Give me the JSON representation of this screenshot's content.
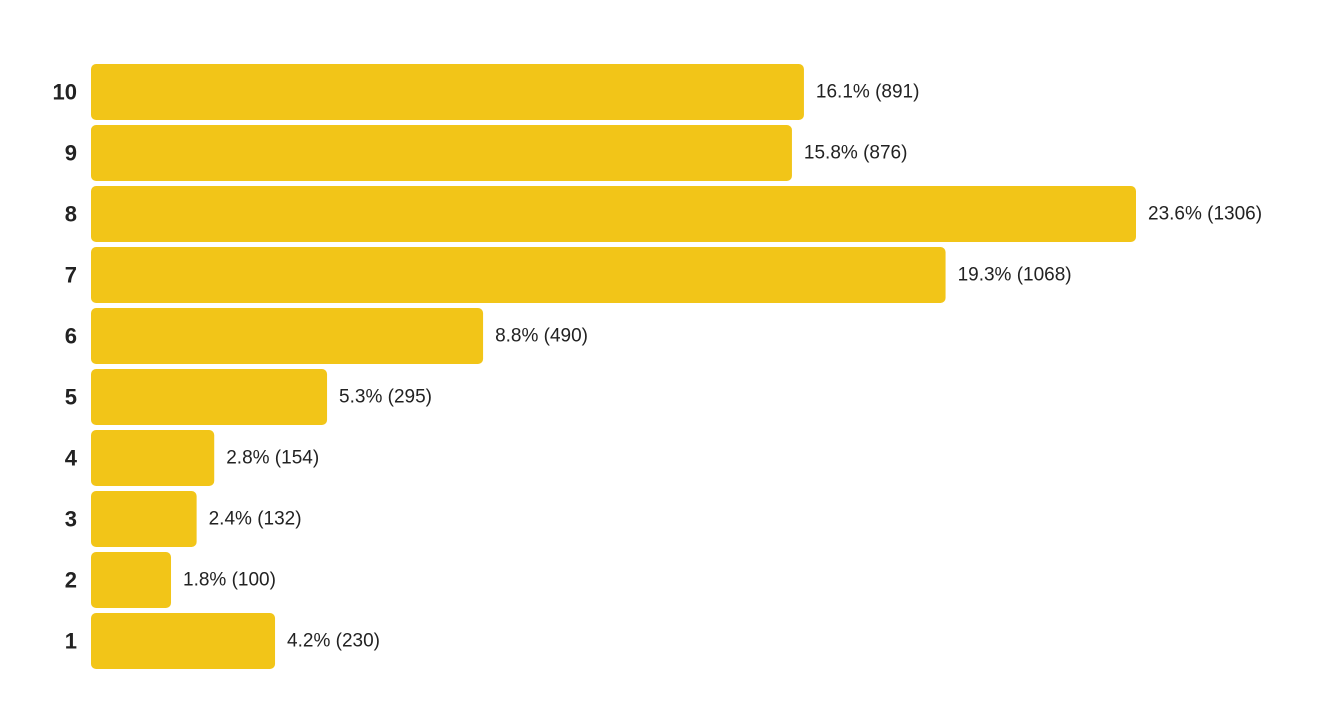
{
  "chart_data": {
    "type": "bar",
    "orientation": "horizontal",
    "title": "",
    "xlabel": "",
    "ylabel": "",
    "bar_color": "#F2C518",
    "categories": [
      "10",
      "9",
      "8",
      "7",
      "6",
      "5",
      "4",
      "3",
      "2",
      "1"
    ],
    "values": [
      891,
      876,
      1306,
      1068,
      490,
      295,
      154,
      132,
      100,
      230
    ],
    "percents": [
      "16.1%",
      "15.8%",
      "23.6%",
      "19.3%",
      "8.8%",
      "5.3%",
      "2.8%",
      "2.4%",
      "1.8%",
      "4.2%"
    ],
    "labels": [
      "16.1% (891)",
      "15.8% (876)",
      "23.6% (1306)",
      "19.3% (1068)",
      "8.8% (490)",
      "5.3% (295)",
      "2.8% (154)",
      "2.4% (132)",
      "1.8% (100)",
      "4.2% (230)"
    ],
    "xlim": [
      0,
      1306
    ],
    "grid": false,
    "legend": "none"
  }
}
